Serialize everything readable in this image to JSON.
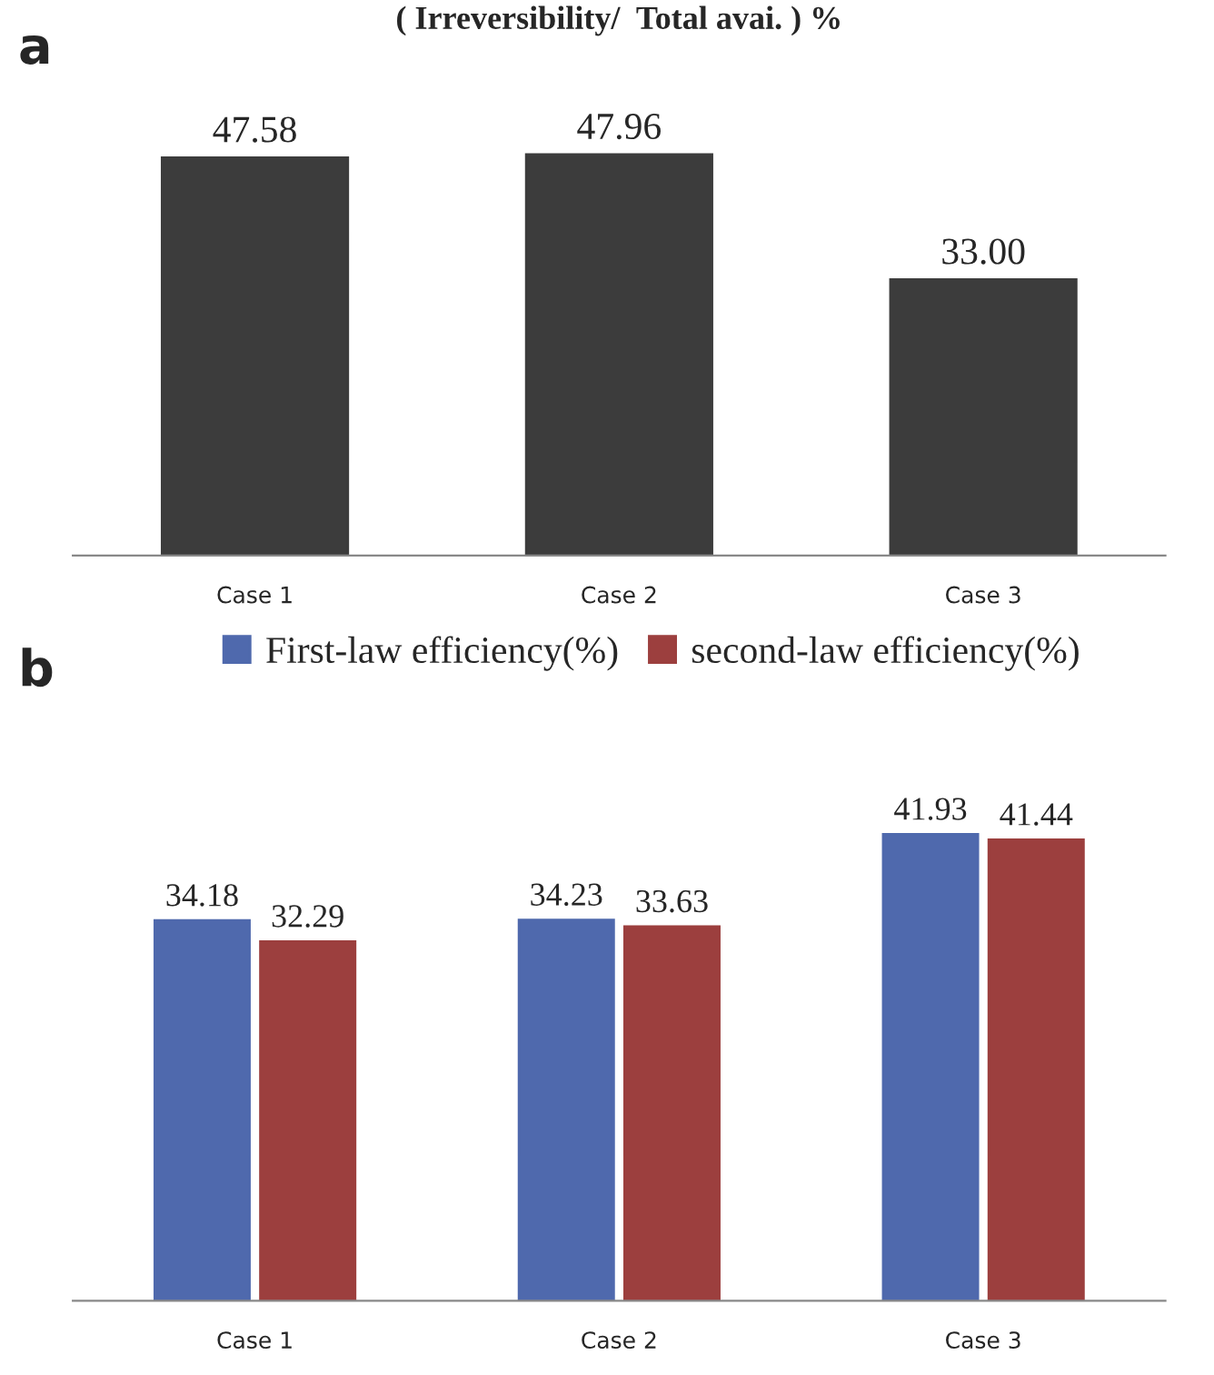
{
  "chart_data": [
    {
      "type": "bar",
      "title": "( Irreversibility/  Total avai. ) %",
      "annotations": [
        "a"
      ],
      "categories": [
        "Case 1",
        "Case 2",
        "Case 3"
      ],
      "series": [
        {
          "color": "#3c3c3c",
          "values": [
            47.58,
            47.96,
            33.0
          ],
          "value_labels": [
            "47.58",
            "47.96",
            "33.00"
          ]
        }
      ],
      "grid": false,
      "legend": false
    },
    {
      "type": "bar",
      "annotations": [
        "b"
      ],
      "categories": [
        "Case 1",
        "Case 2",
        "Case 3"
      ],
      "series": [
        {
          "name": "First-law efficiency(%)",
          "color": "#4f69ad",
          "values": [
            34.18,
            34.23,
            41.93
          ]
        },
        {
          "name": "second-law efficiency(%)",
          "color": "#9c3f3e",
          "values": [
            32.29,
            33.63,
            41.44
          ]
        }
      ],
      "data_labels": true,
      "grid": false,
      "legend": "top"
    }
  ]
}
